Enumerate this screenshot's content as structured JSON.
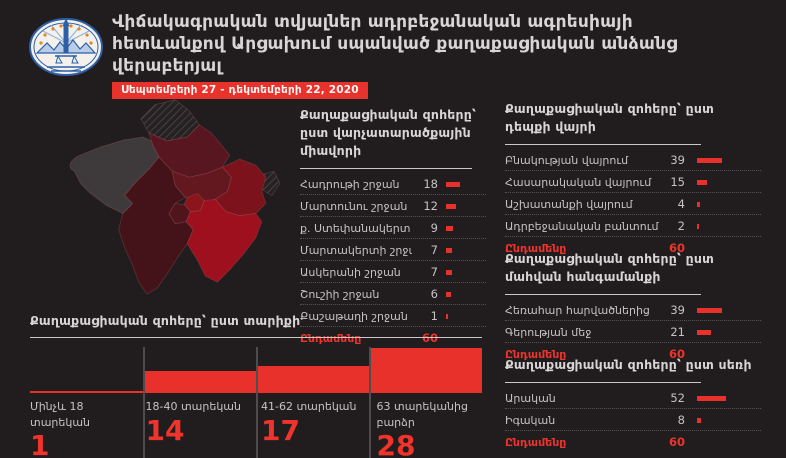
{
  "header": {
    "title": "Վիճակագրական տվյալներ ադրբեջանական ագրեսիայի հետևանքով Արցախում սպանված քաղաքացիական անձանց վերաբերյալ",
    "date_range": "Սեպտեմբերի 27 - դեկտեմբերի 22, 2020",
    "logo": "artsakh-ombudsman-emblem"
  },
  "colors": {
    "background": "#211d1e",
    "accent_red": "#e8312b",
    "total_red": "#ef342c",
    "text_light": "#d8d5d6",
    "text_muted": "#c7c3c4",
    "map_gray_region": "#3e3a3b",
    "map_dark_red": "#571620",
    "map_mid_red": "#7c121c",
    "map_bright_red": "#9e101d"
  },
  "chart_data": [
    {
      "id": "by_region",
      "type": "bar",
      "title": "Քաղաքացիական զոհերը՝ ըստ վարչատարածքային միավորի",
      "categories": [
        "Հադրութի շրջան",
        "Մարտունու շրջան",
        "ք. Ստեփանակերտ",
        "Մարտակերտի շրջան",
        "Ասկերանի շրջան",
        "Շուշիի շրջան",
        "Քաշաթաղի շրջան"
      ],
      "values": [
        18,
        12,
        9,
        7,
        7,
        6,
        1
      ],
      "total_label": "Ընդամենը",
      "total_value": 60,
      "legend_position": "none",
      "orientation": "horizontal"
    },
    {
      "id": "by_location",
      "type": "bar",
      "title": "Քաղաքացիական զոհերը՝ ըստ դեպքի վայրի",
      "categories": [
        "Բնակության վայրում",
        "Հասարակական վայրում",
        "Աշխատանքի վայրում",
        "Ադրբեջանական բանտում"
      ],
      "values": [
        39,
        15,
        4,
        2
      ],
      "total_label": "Ընդամենը",
      "total_value": 60,
      "legend_position": "none",
      "orientation": "horizontal"
    },
    {
      "id": "by_circumstance",
      "type": "bar",
      "title": "Քաղաքացիական զոհերը՝ ըստ մահվան հանգամանքի",
      "categories": [
        "Հեռահար հարվածներից",
        "Գերության մեջ"
      ],
      "values": [
        39,
        21
      ],
      "total_label": "Ընդամենը",
      "total_value": 60,
      "legend_position": "none",
      "orientation": "horizontal"
    },
    {
      "id": "by_gender",
      "type": "bar",
      "title": "Քաղաքացիական զոհերը՝ ըստ սեռի",
      "categories": [
        "Արական",
        "Իգական"
      ],
      "values": [
        52,
        8
      ],
      "total_label": "Ընդամենը",
      "total_value": 60,
      "legend_position": "none",
      "orientation": "horizontal"
    },
    {
      "id": "by_age",
      "type": "bar",
      "title": "Քաղաքացիական զոհերը՝ ըստ տարիքի",
      "categories": [
        "Մինչև 18 տարեկան",
        "18-40 տարեկան",
        "41-62 տարեկան",
        "63 տարեկանից բարձր"
      ],
      "values": [
        1,
        14,
        17,
        28
      ],
      "legend_position": "none",
      "orientation": "vertical-step"
    }
  ],
  "map": {
    "name": "Artsakh regions choropleth",
    "note": "no text labels shown on map"
  }
}
